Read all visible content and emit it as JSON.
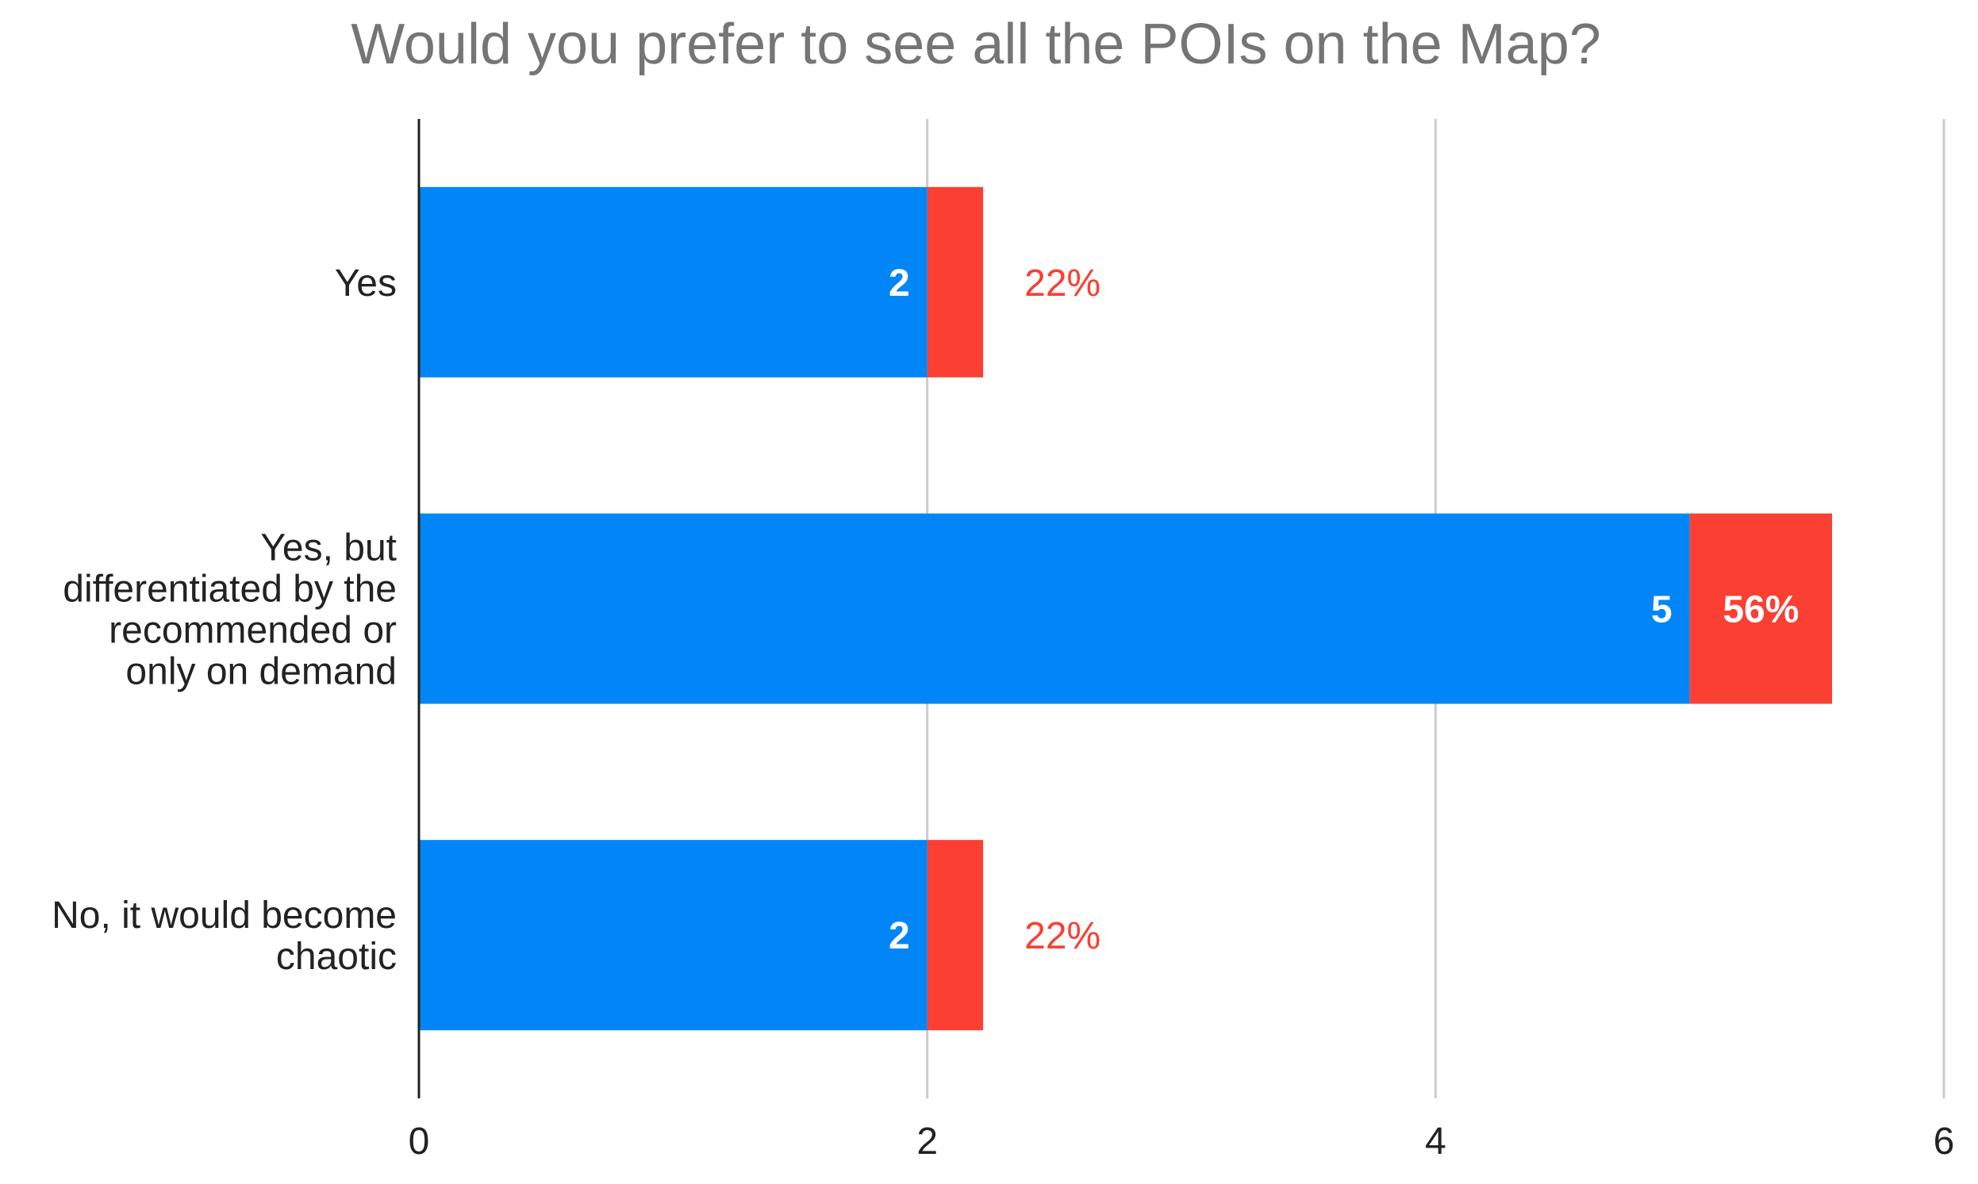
{
  "chart_data": {
    "type": "bar",
    "orientation": "horizontal",
    "stacked": true,
    "title": "Would you prefer to see all the POIs on the Map?",
    "categories": [
      [
        "Yes"
      ],
      [
        "Yes, but",
        "differentiated by the",
        "recommended or",
        "only on demand"
      ],
      [
        "No, it would become",
        "chaotic"
      ]
    ],
    "series": [
      {
        "values": [
          2,
          5,
          2
        ],
        "color": "#0286f7",
        "labels": [
          "2",
          "5",
          "2"
        ]
      },
      {
        "values": [
          0.22,
          0.56,
          0.22
        ],
        "color": "#fa3f33",
        "labels": [
          "22%",
          "56%",
          "22%"
        ]
      }
    ],
    "xlim": [
      0,
      6
    ],
    "x_ticks": [
      "0",
      "2",
      "4",
      "6"
    ],
    "grid": true,
    "xlabel": "",
    "ylabel": ""
  }
}
